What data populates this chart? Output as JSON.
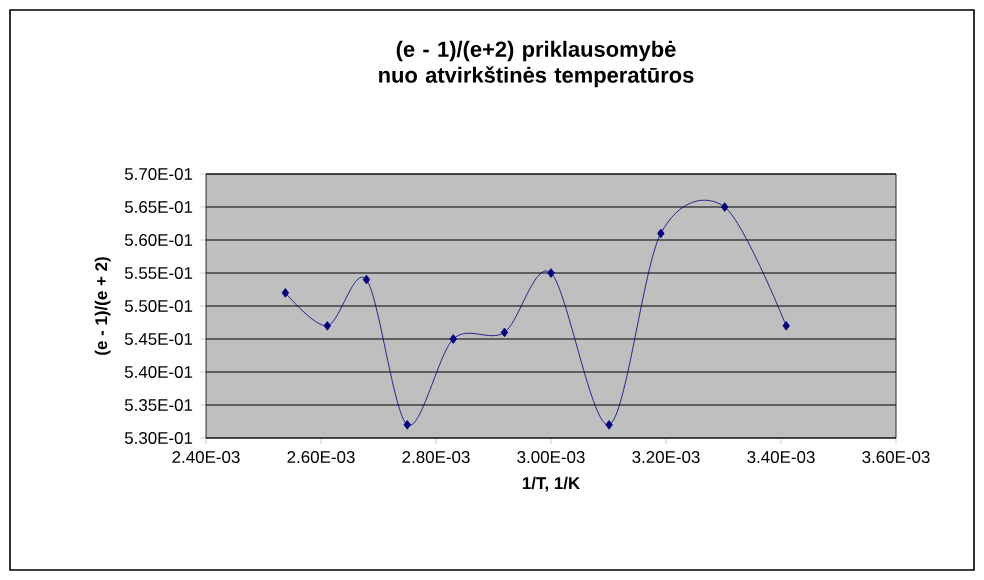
{
  "chart_data": {
    "type": "line",
    "title": "(e - 1)/(e+2) priklausomybė nuo atvirkštinės temperatūros",
    "xlabel": "1/T, 1/K",
    "ylabel": "(e - 1)/(e + 2)",
    "x": [
      0.002538,
      0.002611,
      0.002679,
      0.00275,
      0.00283,
      0.002919,
      0.003,
      0.003101,
      0.003191,
      0.003302,
      0.003409
    ],
    "series": [
      {
        "color": "#000080",
        "values": [
          0.552,
          0.547,
          0.554,
          0.532,
          0.545,
          0.546,
          0.555,
          0.532,
          0.561,
          0.565,
          0.547
        ]
      }
    ],
    "xlim": [
      0.0024,
      0.0036
    ],
    "ylim": [
      0.53,
      0.57
    ],
    "xticks": [
      {
        "value": 0.0024,
        "label": "2.40E-03"
      },
      {
        "value": 0.0026,
        "label": "2.60E-03"
      },
      {
        "value": 0.0028,
        "label": "2.80E-03"
      },
      {
        "value": 0.003,
        "label": "3.00E-03"
      },
      {
        "value": 0.0032,
        "label": "3.20E-03"
      },
      {
        "value": 0.0034,
        "label": "3.40E-03"
      },
      {
        "value": 0.0036,
        "label": "3.60E-03"
      }
    ],
    "yticks": [
      {
        "value": 0.53,
        "label": "5.30E-01"
      },
      {
        "value": 0.535,
        "label": "5.35E-01"
      },
      {
        "value": 0.54,
        "label": "5.40E-01"
      },
      {
        "value": 0.545,
        "label": "5.45E-01"
      },
      {
        "value": 0.55,
        "label": "5.50E-01"
      },
      {
        "value": 0.555,
        "label": "5.55E-01"
      },
      {
        "value": 0.56,
        "label": "5.60E-01"
      },
      {
        "value": 0.565,
        "label": "5.65E-01"
      },
      {
        "value": 0.57,
        "label": "5.70E-01"
      }
    ],
    "grid": "y",
    "marker": "diamond",
    "line_style": "solid"
  }
}
